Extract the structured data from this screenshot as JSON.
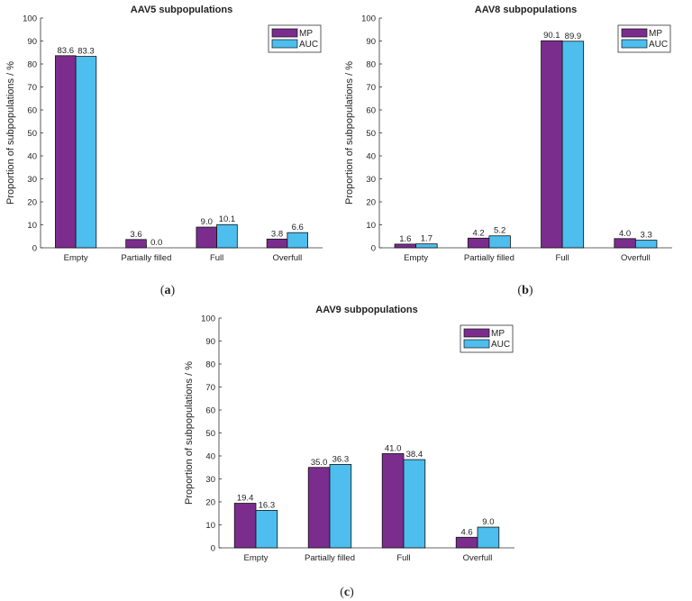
{
  "panel_labels": [
    "a",
    "b",
    "c"
  ],
  "chart_data": [
    {
      "type": "bar",
      "title": "AAV5 subpopulations",
      "ylabel": "Proportion of subpopulations / %",
      "xlabel": "",
      "ylim": [
        0,
        100
      ],
      "yticks": [
        0,
        10,
        20,
        30,
        40,
        50,
        60,
        70,
        80,
        90,
        100
      ],
      "categories": [
        "Empty",
        "Partially filled",
        "Full",
        "Overfull"
      ],
      "legend_position": "top-right",
      "series": [
        {
          "name": "MP",
          "color": "#7b2d8e",
          "values": [
            83.6,
            3.6,
            9.0,
            3.8
          ],
          "labels": [
            "83.6",
            "3.6",
            "9.0",
            "3.8"
          ]
        },
        {
          "name": "AUC",
          "color": "#4dbeee",
          "values": [
            83.3,
            0.0,
            10.1,
            6.6
          ],
          "labels": [
            "83.3",
            "0.0",
            "10.1",
            "6.6"
          ]
        }
      ]
    },
    {
      "type": "bar",
      "title": "AAV8 subpopulations",
      "ylabel": "Proportion of subpopulations / %",
      "xlabel": "",
      "ylim": [
        0,
        100
      ],
      "yticks": [
        0,
        10,
        20,
        30,
        40,
        50,
        60,
        70,
        80,
        90,
        100
      ],
      "categories": [
        "Empty",
        "Partially filled",
        "Full",
        "Overfull"
      ],
      "legend_position": "top-right",
      "series": [
        {
          "name": "MP",
          "color": "#7b2d8e",
          "values": [
            1.6,
            4.2,
            90.1,
            4.0
          ],
          "labels": [
            "1.6",
            "4.2",
            "90.1",
            "4.0"
          ]
        },
        {
          "name": "AUC",
          "color": "#4dbeee",
          "values": [
            1.7,
            5.2,
            89.9,
            3.3
          ],
          "labels": [
            "1.7",
            "5.2",
            "89.9",
            "3.3"
          ]
        }
      ]
    },
    {
      "type": "bar",
      "title": "AAV9 subpopulations",
      "ylabel": "Proportion of subpopulations / %",
      "xlabel": "",
      "ylim": [
        0,
        100
      ],
      "yticks": [
        0,
        10,
        20,
        30,
        40,
        50,
        60,
        70,
        80,
        90,
        100
      ],
      "categories": [
        "Empty",
        "Partially filled",
        "Full",
        "Overfull"
      ],
      "legend_position": "top-right",
      "series": [
        {
          "name": "MP",
          "color": "#7b2d8e",
          "values": [
            19.4,
            35.0,
            41.0,
            4.6
          ],
          "labels": [
            "19.4",
            "35.0",
            "41.0",
            "4.6"
          ]
        },
        {
          "name": "AUC",
          "color": "#4dbeee",
          "values": [
            16.3,
            36.3,
            38.4,
            9.0
          ],
          "labels": [
            "16.3",
            "36.3",
            "38.4",
            "9.0"
          ]
        }
      ]
    }
  ]
}
